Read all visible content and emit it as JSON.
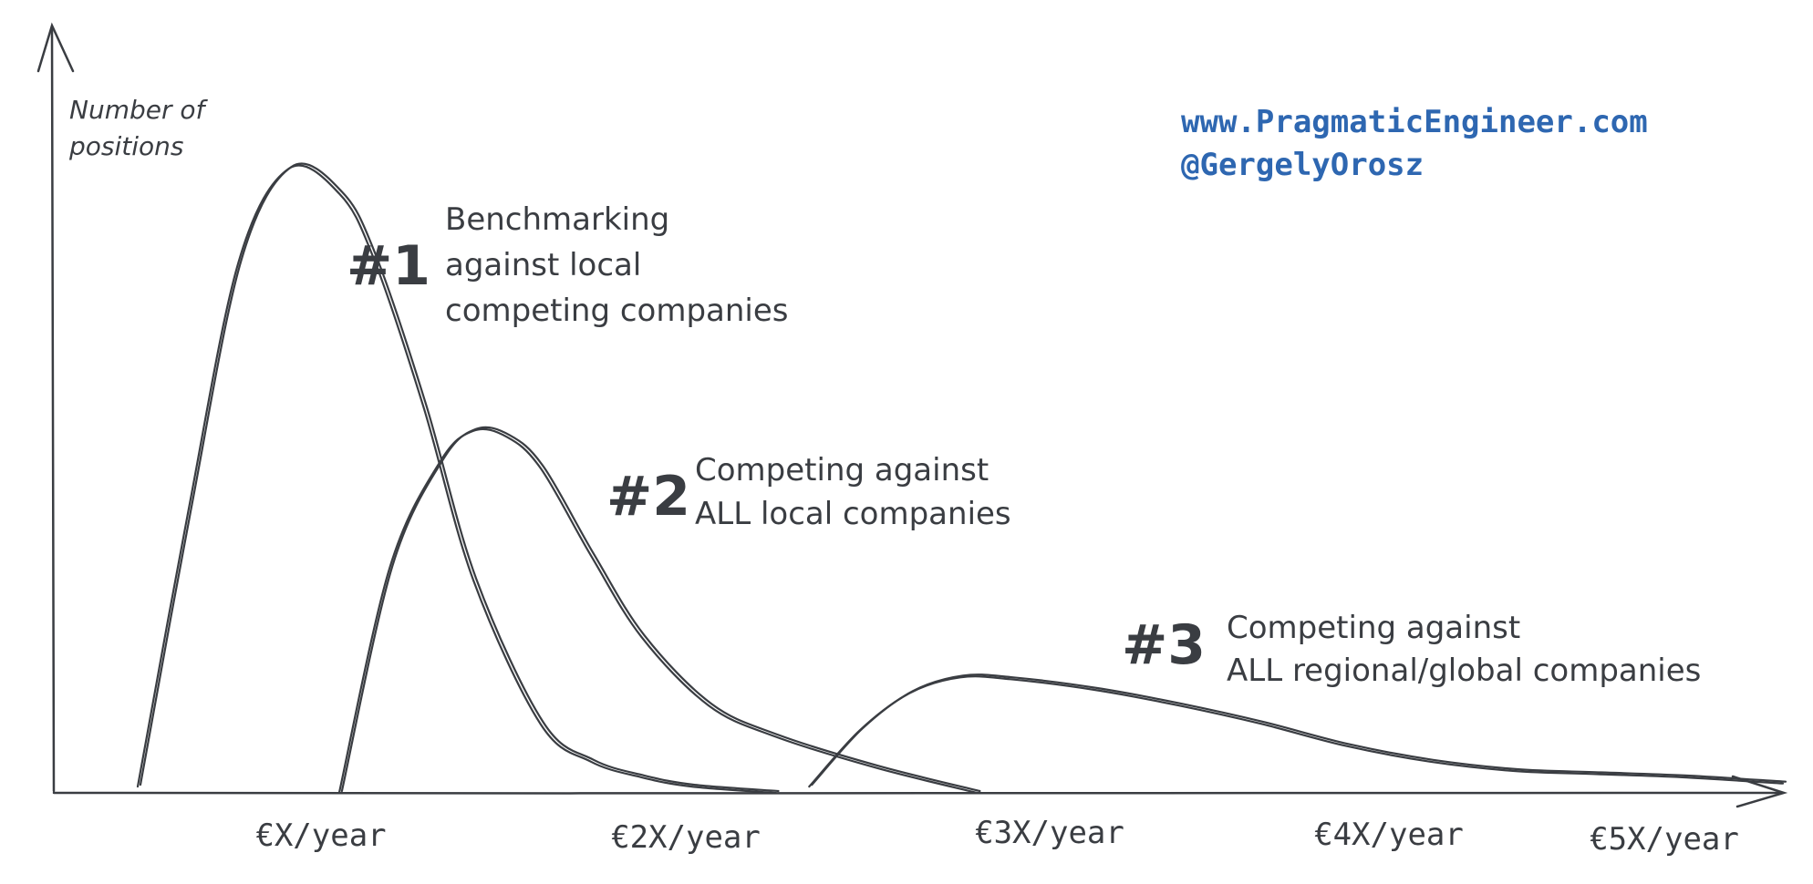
{
  "chart_data": {
    "type": "line",
    "ylabel_lines": [
      "Number of",
      "positions"
    ],
    "x_ticks": [
      "€X/year",
      "€2X/year",
      "€3X/year",
      "€4X/year",
      "€5X/year"
    ],
    "xlim": [
      0.15,
      5.3
    ],
    "ylim": [
      0,
      1
    ],
    "series": [
      {
        "number": "#1",
        "label_lines": [
          "Benchmarking",
          "against local",
          "competing companies"
        ],
        "x": [
          0.4,
          0.55,
          0.7,
          0.85,
          1.0,
          1.1,
          1.25,
          1.4,
          1.6,
          1.75,
          1.9,
          2.05,
          2.3
        ],
        "y": [
          0.01,
          0.45,
          0.85,
          1.0,
          0.96,
          0.86,
          0.62,
          0.34,
          0.11,
          0.05,
          0.025,
          0.01,
          0.0
        ]
      },
      {
        "number": "#2",
        "label_lines": [
          "Competing against",
          "ALL local companies"
        ],
        "x": [
          1.0,
          1.15,
          1.3,
          1.4,
          1.5,
          1.6,
          1.75,
          1.9,
          2.1,
          2.3,
          2.6,
          2.9
        ],
        "y": [
          0.0,
          0.36,
          0.53,
          0.58,
          0.57,
          0.52,
          0.38,
          0.25,
          0.14,
          0.09,
          0.04,
          0.0
        ]
      },
      {
        "number": "#3",
        "label_lines": [
          "Competing against",
          "ALL regional/global companies"
        ],
        "x": [
          2.4,
          2.55,
          2.7,
          2.85,
          3.0,
          3.25,
          3.5,
          3.75,
          4.0,
          4.25,
          4.5,
          4.75,
          5.0,
          5.3
        ],
        "y": [
          0.01,
          0.1,
          0.16,
          0.185,
          0.182,
          0.165,
          0.14,
          0.11,
          0.075,
          0.05,
          0.035,
          0.03,
          0.025,
          0.015
        ]
      }
    ]
  },
  "credit": {
    "website": "www.PragmaticEngineer.com",
    "handle": "@GergelyOrosz",
    "color": "#2e67b1"
  }
}
